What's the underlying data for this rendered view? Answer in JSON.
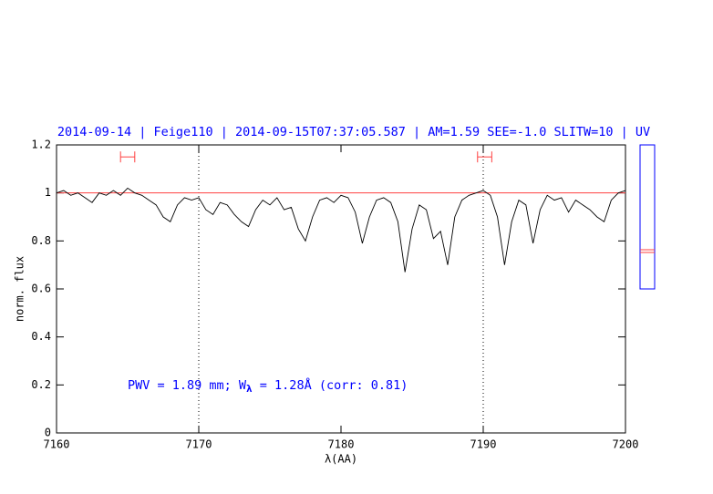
{
  "chart_data": {
    "type": "line",
    "title": "2014-09-14 | Feige110 | 2014-09-15T07:37:05.587 | AM=1.59 SEE=-1.0 SLITW=10 | UV",
    "x_label": "λ(AA)",
    "y_label": "norm. flux",
    "annotation": [
      "PWV = 1.89 mm; W",
      "λ",
      " = 1.28Å (corr: 0.81)"
    ],
    "x": [
      7160,
      7160.5,
      7161,
      7161.5,
      7162,
      7162.5,
      7163,
      7163.5,
      7164,
      7164.5,
      7165,
      7165.5,
      7166,
      7166.5,
      7167,
      7167.5,
      7168,
      7168.5,
      7169,
      7169.5,
      7170,
      7170.5,
      7171,
      7171.5,
      7172,
      7172.5,
      7173,
      7173.5,
      7174,
      7174.5,
      7175,
      7175.5,
      7176,
      7176.5,
      7177,
      7177.5,
      7178,
      7178.5,
      7179,
      7179.5,
      7180,
      7180.5,
      7181,
      7181.5,
      7182,
      7182.5,
      7183,
      7183.5,
      7184,
      7184.5,
      7185,
      7185.5,
      7186,
      7186.5,
      7187,
      7187.5,
      7188,
      7188.5,
      7189,
      7189.5,
      7190,
      7190.5,
      7191,
      7191.5,
      7192,
      7192.5,
      7193,
      7193.5,
      7194,
      7194.5,
      7195,
      7195.5,
      7196,
      7196.5,
      7197,
      7197.5,
      7198,
      7198.5,
      7199,
      7199.5,
      7200
    ],
    "values": [
      1.0,
      1.01,
      0.99,
      1.0,
      0.98,
      0.96,
      1.0,
      0.99,
      1.01,
      0.99,
      1.02,
      1.0,
      0.99,
      0.97,
      0.95,
      0.9,
      0.88,
      0.95,
      0.98,
      0.97,
      0.98,
      0.93,
      0.91,
      0.96,
      0.95,
      0.91,
      0.88,
      0.86,
      0.93,
      0.97,
      0.95,
      0.98,
      0.93,
      0.94,
      0.85,
      0.8,
      0.9,
      0.97,
      0.98,
      0.96,
      0.99,
      0.98,
      0.92,
      0.79,
      0.9,
      0.97,
      0.98,
      0.96,
      0.88,
      0.67,
      0.85,
      0.95,
      0.93,
      0.81,
      0.84,
      0.7,
      0.9,
      0.97,
      0.99,
      1.0,
      1.01,
      0.99,
      0.9,
      0.7,
      0.88,
      0.97,
      0.95,
      0.79,
      0.93,
      0.99,
      0.97,
      0.98,
      0.92,
      0.97,
      0.95,
      0.93,
      0.9,
      0.88,
      0.97,
      1.0,
      1.01
    ],
    "color": "#000000",
    "continuum": 1,
    "continuum_color": "#ff4040",
    "vlines": [
      7170,
      7190
    ],
    "windows": [
      {
        "x": [
          7164.5,
          7165.5
        ],
        "y": 1.15
      },
      {
        "x": [
          7189.6,
          7190.6
        ],
        "y": 1.15
      }
    ],
    "xlim": [
      7160,
      7200
    ],
    "xticks": [
      7160,
      7170,
      7180,
      7190,
      7200
    ],
    "ylim": [
      0,
      1.2
    ],
    "yticks": [
      0,
      0.2,
      0.4,
      0.6,
      0.8,
      1,
      1.2
    ]
  }
}
